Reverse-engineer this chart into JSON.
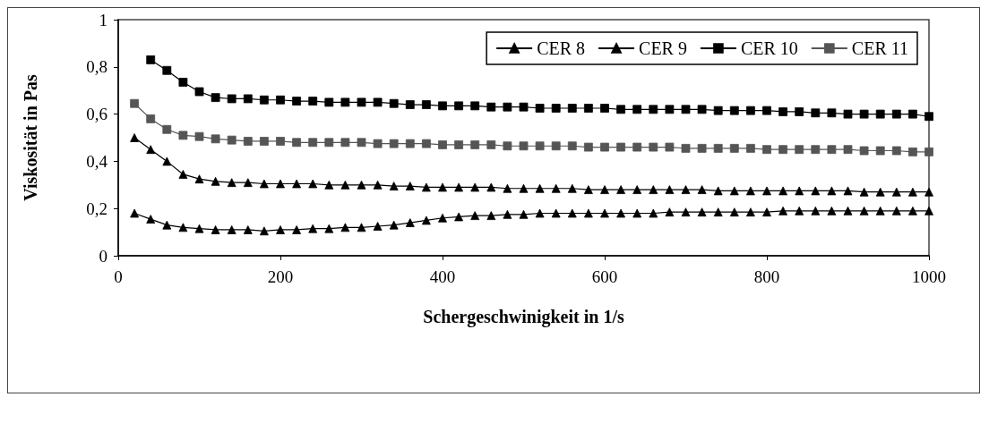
{
  "chart_data": {
    "type": "line",
    "xlabel": "Schergeschwinigkeit in 1/s",
    "ylabel": "Viskosität in Pas",
    "x": [
      20,
      40,
      60,
      80,
      100,
      120,
      140,
      160,
      180,
      200,
      220,
      240,
      260,
      280,
      300,
      320,
      340,
      360,
      380,
      400,
      420,
      440,
      460,
      480,
      500,
      520,
      540,
      560,
      580,
      600,
      620,
      640,
      660,
      680,
      700,
      720,
      740,
      760,
      780,
      800,
      820,
      840,
      860,
      880,
      900,
      920,
      940,
      960,
      980,
      1000
    ],
    "series": [
      {
        "name": "CER 8",
        "color": "#000000",
        "marker": "triangle",
        "values": [
          0.18,
          0.155,
          0.13,
          0.12,
          0.115,
          0.11,
          0.11,
          0.11,
          0.105,
          0.11,
          0.11,
          0.115,
          0.115,
          0.12,
          0.12,
          0.125,
          0.13,
          0.14,
          0.15,
          0.16,
          0.165,
          0.17,
          0.17,
          0.175,
          0.175,
          0.18,
          0.18,
          0.18,
          0.18,
          0.18,
          0.18,
          0.18,
          0.18,
          0.185,
          0.185,
          0.185,
          0.185,
          0.185,
          0.185,
          0.185,
          0.19,
          0.19,
          0.19,
          0.19,
          0.19,
          0.19,
          0.19,
          0.19,
          0.19,
          0.19
        ]
      },
      {
        "name": "CER 9",
        "color": "#000000",
        "marker": "triangle",
        "values": [
          0.5,
          0.45,
          0.4,
          0.345,
          0.325,
          0.315,
          0.31,
          0.31,
          0.305,
          0.305,
          0.305,
          0.305,
          0.3,
          0.3,
          0.3,
          0.3,
          0.295,
          0.295,
          0.29,
          0.29,
          0.29,
          0.29,
          0.29,
          0.285,
          0.285,
          0.285,
          0.285,
          0.285,
          0.28,
          0.28,
          0.28,
          0.28,
          0.28,
          0.28,
          0.28,
          0.28,
          0.275,
          0.275,
          0.275,
          0.275,
          0.275,
          0.275,
          0.275,
          0.275,
          0.275,
          0.27,
          0.27,
          0.27,
          0.27,
          0.27
        ]
      },
      {
        "name": "CER 10",
        "color": "#000000",
        "marker": "square",
        "values": [
          null,
          0.83,
          0.785,
          0.735,
          0.695,
          0.67,
          0.665,
          0.665,
          0.66,
          0.66,
          0.655,
          0.655,
          0.65,
          0.65,
          0.65,
          0.65,
          0.645,
          0.64,
          0.64,
          0.635,
          0.635,
          0.635,
          0.63,
          0.63,
          0.63,
          0.625,
          0.625,
          0.625,
          0.625,
          0.625,
          0.62,
          0.62,
          0.62,
          0.62,
          0.62,
          0.62,
          0.615,
          0.615,
          0.615,
          0.615,
          0.61,
          0.61,
          0.605,
          0.605,
          0.6,
          0.6,
          0.6,
          0.6,
          0.6,
          0.59
        ]
      },
      {
        "name": "CER 11",
        "color": "#555555",
        "marker": "square",
        "values": [
          0.645,
          0.58,
          0.535,
          0.51,
          0.505,
          0.495,
          0.49,
          0.485,
          0.485,
          0.485,
          0.48,
          0.48,
          0.48,
          0.48,
          0.48,
          0.475,
          0.475,
          0.475,
          0.475,
          0.47,
          0.47,
          0.47,
          0.47,
          0.465,
          0.465,
          0.465,
          0.465,
          0.465,
          0.46,
          0.46,
          0.46,
          0.46,
          0.46,
          0.46,
          0.455,
          0.455,
          0.455,
          0.455,
          0.455,
          0.45,
          0.45,
          0.45,
          0.45,
          0.45,
          0.45,
          0.445,
          0.445,
          0.445,
          0.44,
          0.44
        ]
      }
    ],
    "xlim": [
      0,
      1000
    ],
    "xticks": [
      0,
      200,
      400,
      600,
      800,
      1000
    ],
    "ylim": [
      0,
      1
    ],
    "yticks": [
      0,
      {
        "value": 0.2,
        "label": "0,2"
      },
      {
        "value": 0.4,
        "label": "0,4"
      },
      {
        "value": 0.6,
        "label": "0,6"
      },
      {
        "value": 0.8,
        "label": "0,8"
      },
      1
    ],
    "grid": false,
    "legend": "top right"
  }
}
